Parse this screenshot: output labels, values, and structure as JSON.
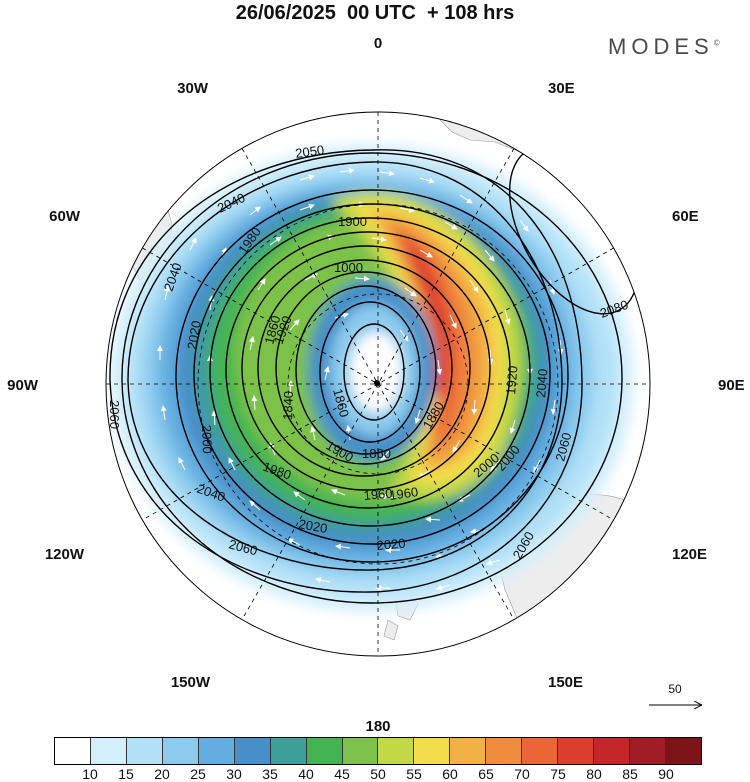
{
  "title": "26/06/2025  00 UTC  + 108 hrs",
  "logo": "MODES",
  "logo_mark": "©",
  "longitude_labels": [
    "0",
    "30E",
    "60E",
    "90E",
    "120E",
    "150E",
    "180",
    "150W",
    "120W",
    "90W",
    "60W",
    "30W"
  ],
  "contour_labels": [
    "2050",
    "2040",
    "1900",
    "1000",
    "2040",
    "1980",
    "2020",
    "1920",
    "1860",
    "1860",
    "1840",
    "2000",
    "1900",
    "1860",
    "1980",
    "1960",
    "2000",
    "2020",
    "2040",
    "2060",
    "2060",
    "2060",
    "2060",
    "2040",
    "2080",
    "2020",
    "2000",
    "1960",
    "1920",
    "1880"
  ],
  "reference_vector": "50",
  "colorbar": {
    "labels": [
      "10",
      "15",
      "20",
      "25",
      "30",
      "35",
      "40",
      "45",
      "50",
      "55",
      "60",
      "65",
      "70",
      "75",
      "80",
      "85",
      "90"
    ],
    "colors": [
      "#ffffff",
      "#d4effc",
      "#b2e1f8",
      "#8ccbee",
      "#64ade0",
      "#468fc8",
      "#3f9f9a",
      "#44b452",
      "#7cc24a",
      "#c2d846",
      "#f4dd4c",
      "#f2b045",
      "#ef8c3d",
      "#ea6637",
      "#dc3e2f",
      "#c4262a",
      "#a11d25",
      "#7c1518"
    ]
  }
}
